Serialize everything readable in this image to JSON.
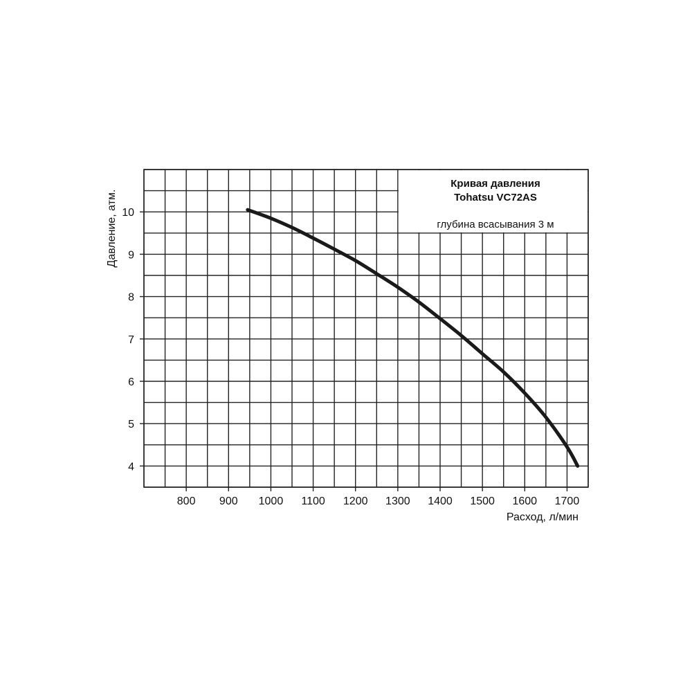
{
  "chart_data": {
    "type": "line",
    "title": "Кривая давления",
    "title_line2": "Tohatsu  VC72AS",
    "subtitle": "глубина всасывания 3 м",
    "xlabel": "Расход, л/мин",
    "ylabel": "Давление, атм.",
    "xlim": [
      700,
      1750
    ],
    "ylim": [
      3.5,
      11
    ],
    "xticks": [
      800,
      900,
      1000,
      1100,
      1200,
      1300,
      1400,
      1500,
      1600,
      1700
    ],
    "yticks": [
      4,
      5,
      6,
      7,
      8,
      9,
      10
    ],
    "grid": true,
    "series": [
      {
        "x": [
          945,
          1000,
          1050,
          1100,
          1150,
          1200,
          1250,
          1300,
          1350,
          1400,
          1450,
          1500,
          1550,
          1600,
          1650,
          1700,
          1725
        ],
        "y": [
          10.05,
          9.85,
          9.63,
          9.38,
          9.12,
          8.85,
          8.54,
          8.22,
          7.87,
          7.48,
          7.08,
          6.65,
          6.22,
          5.72,
          5.15,
          4.45,
          4.0
        ]
      }
    ]
  },
  "colors": {
    "grid": "#222222",
    "curve": "#1a1a1a",
    "background": "#ffffff"
  }
}
